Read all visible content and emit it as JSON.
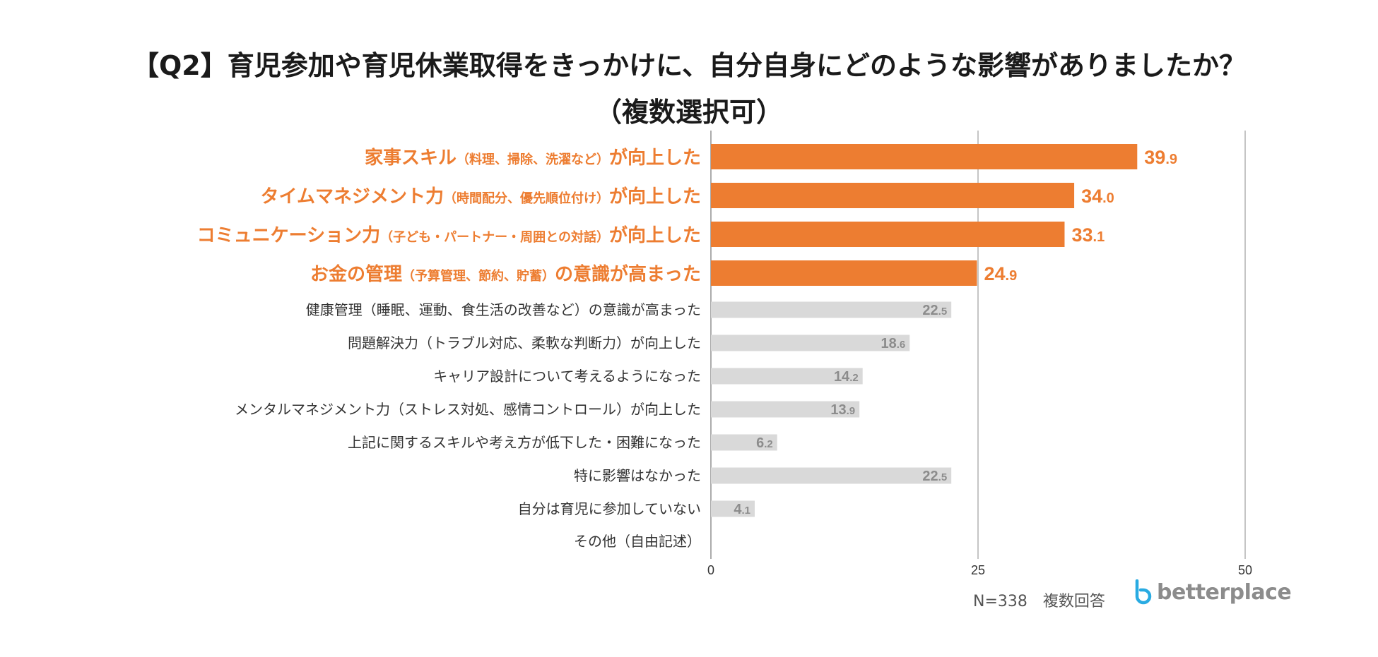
{
  "title_line1": "【Q2】育児参加や育児休業取得をきっかけに、自分自身にどのような影響がありましたか？",
  "title_line2": "（複数選択可）",
  "chart_data": {
    "type": "bar",
    "orientation": "horizontal",
    "xlim": [
      0,
      50
    ],
    "xticks": [
      "0",
      "25",
      "50"
    ],
    "grid": true,
    "categories": [
      {
        "main": "家事スキル",
        "sub": "（料理、掃除、洗濯など）",
        "tail": "が向上した",
        "value": 39.9,
        "int_part": "39",
        "dec_part": ".9",
        "highlight": true
      },
      {
        "main": "タイムマネジメント力",
        "sub": "（時間配分、優先順位付け）",
        "tail": "が向上した",
        "value": 34.0,
        "int_part": "34",
        "dec_part": ".0",
        "highlight": true
      },
      {
        "main": "コミュニケーション力",
        "sub": "（子ども・パートナー・周囲との対話）",
        "tail": "が向上した",
        "value": 33.1,
        "int_part": "33",
        "dec_part": ".1",
        "highlight": true
      },
      {
        "main": "お金の管理",
        "sub": "（予算管理、節約、貯蓄）",
        "tail": "の意識が高まった",
        "value": 24.9,
        "int_part": "24",
        "dec_part": ".9",
        "highlight": true
      },
      {
        "main": "健康管理（睡眠、運動、食生活の改善など）の意識が高まった",
        "sub": "",
        "tail": "",
        "value": 22.5,
        "int_part": "22",
        "dec_part": ".5",
        "highlight": false
      },
      {
        "main": "問題解決力（トラブル対応、柔軟な判断力）が向上した",
        "sub": "",
        "tail": "",
        "value": 18.6,
        "int_part": "18",
        "dec_part": ".6",
        "highlight": false
      },
      {
        "main": "キャリア設計について考えるようになった",
        "sub": "",
        "tail": "",
        "value": 14.2,
        "int_part": "14",
        "dec_part": ".2",
        "highlight": false
      },
      {
        "main": "メンタルマネジメント力（ストレス対処、感情コントロール）が向上した",
        "sub": "",
        "tail": "",
        "value": 13.9,
        "int_part": "13",
        "dec_part": ".9",
        "highlight": false
      },
      {
        "main": "上記に関するスキルや考え方が低下した・困難になった",
        "sub": "",
        "tail": "",
        "value": 6.2,
        "int_part": "6",
        "dec_part": ".2",
        "highlight": false
      },
      {
        "main": "特に影響はなかった",
        "sub": "",
        "tail": "",
        "value": 22.5,
        "int_part": "22",
        "dec_part": ".5",
        "highlight": false
      },
      {
        "main": "自分は育児に参加していない",
        "sub": "",
        "tail": "",
        "value": 4.1,
        "int_part": "4",
        "dec_part": ".1",
        "highlight": false
      },
      {
        "main": "その他（自由記述）",
        "sub": "",
        "tail": "",
        "value": null,
        "int_part": "",
        "dec_part": "",
        "highlight": false
      }
    ]
  },
  "footer": {
    "sample_note": "N=338　複数回答",
    "logo_text": "betterplace"
  },
  "colors": {
    "highlight": "#ED7D31",
    "normal_bar": "#D9D9D9",
    "normal_value": "#8C8C8C",
    "grid": "#A6A6A6",
    "logo_accent": "#29ABE2"
  }
}
